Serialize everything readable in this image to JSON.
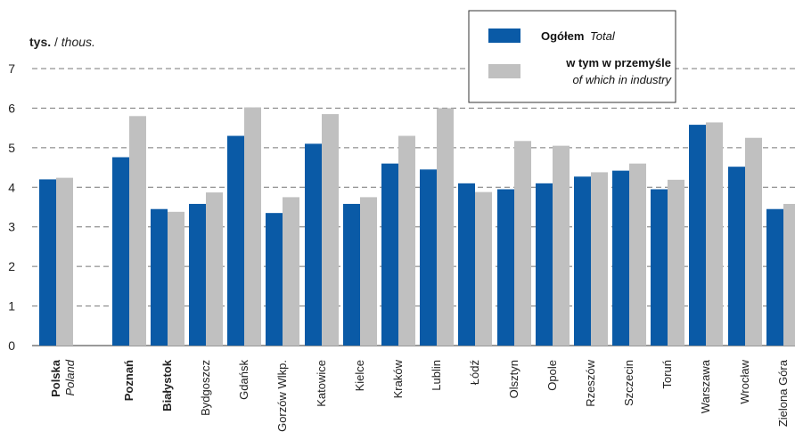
{
  "chart_data": {
    "type": "bar",
    "unit_label": {
      "main": "tys.",
      "sep": " / ",
      "alt": "thous."
    },
    "ylim": [
      0,
      7
    ],
    "yticks": [
      0,
      1,
      2,
      3,
      4,
      5,
      6,
      7
    ],
    "grid": "horizontal-dashed",
    "legend_position": "top-right",
    "series": [
      {
        "name": "Ogółem",
        "name_alt": "Total",
        "color": "#0a5aa6",
        "values": [
          4.2,
          4.76,
          3.45,
          3.58,
          5.3,
          3.35,
          5.1,
          3.58,
          4.6,
          4.45,
          4.1,
          3.95,
          4.1,
          4.27,
          4.42,
          3.95,
          5.58,
          4.52,
          3.45
        ]
      },
      {
        "name": "w tym w przemyśle",
        "name_alt": "of which in industry",
        "color": "#c0c0c0",
        "values": [
          4.24,
          5.8,
          3.38,
          3.87,
          6.02,
          3.75,
          5.85,
          3.75,
          5.3,
          6.0,
          3.88,
          5.17,
          5.05,
          4.38,
          4.6,
          4.19,
          5.64,
          5.25,
          3.58
        ]
      }
    ],
    "categories": [
      {
        "label": "Polska",
        "alt": "Poland",
        "bold": true
      },
      {
        "label": "Poznań",
        "bold": true
      },
      {
        "label": "Białystok",
        "bold": true
      },
      {
        "label": "Bydgoszcz"
      },
      {
        "label": "Gdańsk"
      },
      {
        "label": "Gorzów Wlkp."
      },
      {
        "label": "Katowice"
      },
      {
        "label": "Kielce"
      },
      {
        "label": "Kraków"
      },
      {
        "label": "Lublin"
      },
      {
        "label": "Łódź"
      },
      {
        "label": "Olsztyn"
      },
      {
        "label": "Opole"
      },
      {
        "label": "Rzeszów"
      },
      {
        "label": "Szczecin"
      },
      {
        "label": "Toruń"
      },
      {
        "label": "Warszawa"
      },
      {
        "label": "Wrocław"
      },
      {
        "label": "Zielona Góra"
      }
    ]
  }
}
